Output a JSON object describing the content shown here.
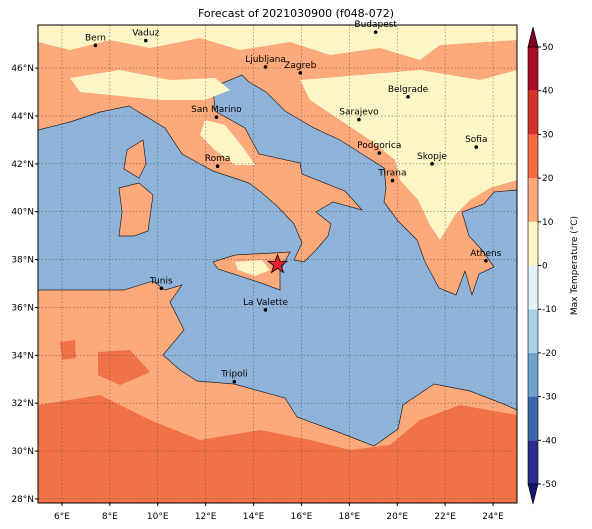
{
  "title": "Forecast of 2021030900 (f048-072)",
  "map": {
    "lon_range": [
      5,
      25
    ],
    "lat_range": [
      27.83,
      47.8
    ],
    "lon_ticks": [
      {
        "value": 6,
        "label": "6°E"
      },
      {
        "value": 8,
        "label": "8°E"
      },
      {
        "value": 10,
        "label": "10°E"
      },
      {
        "value": 12,
        "label": "12°E"
      },
      {
        "value": 14,
        "label": "14°E"
      },
      {
        "value": 16,
        "label": "16°E"
      },
      {
        "value": 18,
        "label": "18°E"
      },
      {
        "value": 20,
        "label": "20°E"
      },
      {
        "value": 22,
        "label": "22°E"
      },
      {
        "value": 24,
        "label": "24°E"
      }
    ],
    "lat_ticks": [
      {
        "value": 28,
        "label": "28°N"
      },
      {
        "value": 30,
        "label": "30°N"
      },
      {
        "value": 32,
        "label": "32°N"
      },
      {
        "value": 34,
        "label": "34°N"
      },
      {
        "value": 36,
        "label": "36°N"
      },
      {
        "value": 38,
        "label": "38°N"
      },
      {
        "value": 40,
        "label": "40°N"
      },
      {
        "value": 42,
        "label": "42°N"
      },
      {
        "value": 44,
        "label": "44°N"
      },
      {
        "value": 46,
        "label": "46°N"
      }
    ],
    "marker": {
      "lon": 15,
      "lat": 37.8,
      "color": "#e8202a"
    }
  },
  "cities": [
    {
      "name": "Bern",
      "lon": 7.4,
      "lat": 46.95
    },
    {
      "name": "Vaduz",
      "lon": 9.5,
      "lat": 47.15
    },
    {
      "name": "Budapest",
      "lon": 19.1,
      "lat": 47.5
    },
    {
      "name": "Ljubljana",
      "lon": 14.5,
      "lat": 46.05
    },
    {
      "name": "Zagreb",
      "lon": 15.95,
      "lat": 45.8
    },
    {
      "name": "San Marino",
      "lon": 12.45,
      "lat": 43.95
    },
    {
      "name": "Sarajevo",
      "lon": 18.4,
      "lat": 43.85
    },
    {
      "name": "Belgrade",
      "lon": 20.45,
      "lat": 44.8
    },
    {
      "name": "Roma",
      "lon": 12.5,
      "lat": 41.9
    },
    {
      "name": "Podgorica",
      "lon": 19.25,
      "lat": 42.45
    },
    {
      "name": "Skopje",
      "lon": 21.45,
      "lat": 42.0
    },
    {
      "name": "Sofia",
      "lon": 23.3,
      "lat": 42.7
    },
    {
      "name": "Tirana",
      "lon": 19.8,
      "lat": 41.3
    },
    {
      "name": "Athens",
      "lon": 23.7,
      "lat": 37.95
    },
    {
      "name": "Tunis",
      "lon": 10.15,
      "lat": 36.8
    },
    {
      "name": "La Valette",
      "lon": 14.5,
      "lat": 35.9
    },
    {
      "name": "Tripoli",
      "lon": 13.2,
      "lat": 32.9
    }
  ],
  "colorbar": {
    "label": "Max Temperature (°C)",
    "ticks": [
      -50,
      -40,
      -30,
      -20,
      -10,
      0,
      10,
      20,
      30,
      40,
      50
    ],
    "colors": [
      "#2c2f8e",
      "#3d66ab",
      "#70a3cc",
      "#a9d2e6",
      "#e4f3f7",
      "#fdf5c6",
      "#fca97c",
      "#f26b43",
      "#d3322b",
      "#a80d25"
    ],
    "under_color": "#131a6b",
    "over_color": "#7d0020"
  }
}
